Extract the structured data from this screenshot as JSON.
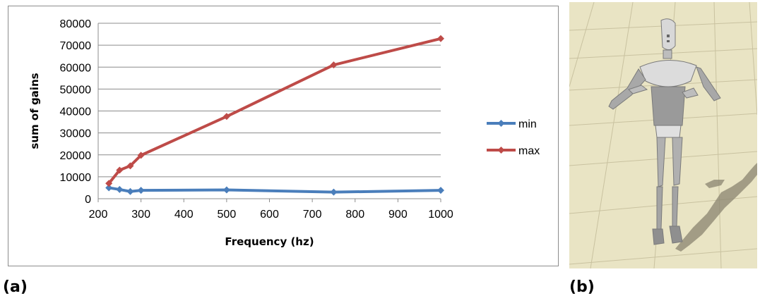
{
  "chart_data": {
    "type": "line",
    "xlabel": "Frequency (hz)",
    "ylabel": "sum of gains",
    "xlim": [
      200,
      1000
    ],
    "ylim": [
      0,
      80000
    ],
    "xticks": [
      200,
      300,
      400,
      500,
      600,
      700,
      800,
      900,
      1000
    ],
    "yticks": [
      0,
      10000,
      20000,
      30000,
      40000,
      50000,
      60000,
      70000,
      80000
    ],
    "grid": "horizontal",
    "legend_position": "right",
    "series": [
      {
        "name": "min",
        "color": "#4a7ebb",
        "x": [
          225,
          250,
          275,
          300,
          500,
          750,
          1000
        ],
        "y": [
          5000,
          4200,
          3300,
          3800,
          4000,
          3000,
          3800
        ]
      },
      {
        "name": "max",
        "color": "#be4b48",
        "x": [
          225,
          250,
          275,
          300,
          500,
          750,
          1000
        ],
        "y": [
          7000,
          13000,
          15000,
          19800,
          37500,
          61000,
          73000
        ]
      }
    ]
  },
  "labels": {
    "panel_a": "(a)",
    "panel_b": "(b)"
  },
  "render": {
    "icon": "humanoid-robot-figure",
    "floor_color": "#e9e4c4",
    "figure_color": "#b4b4b4"
  }
}
